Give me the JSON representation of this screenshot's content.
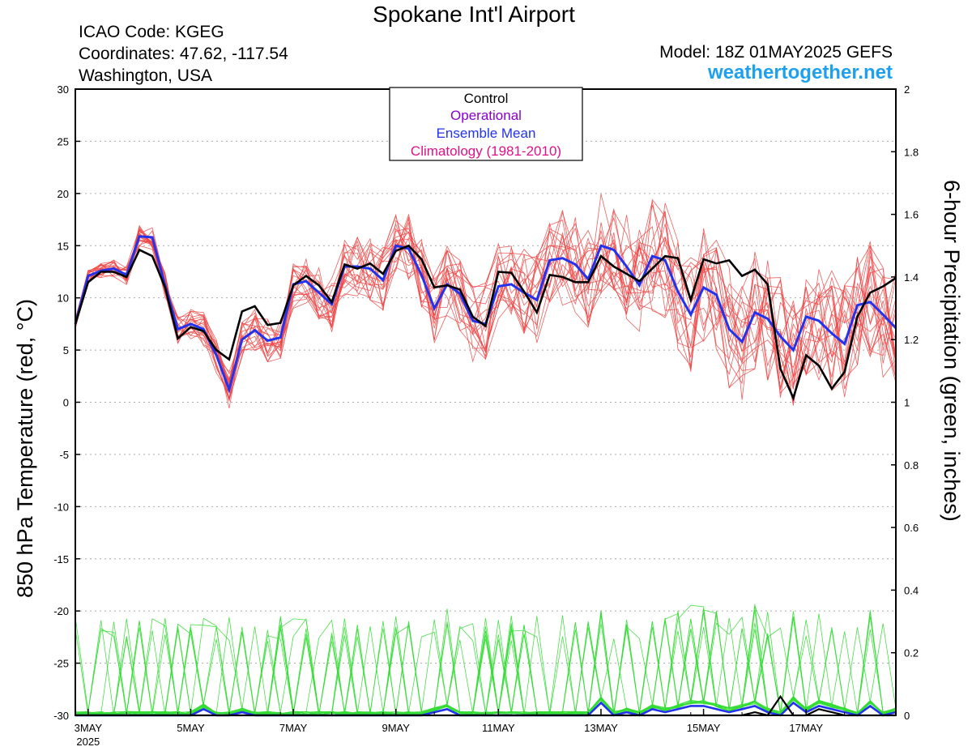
{
  "header": {
    "title": "Spokane Int'l Airport",
    "icao": "ICAO Code: KGEG",
    "coords": "Coordinates: 47.62, -117.54",
    "region": "Washington, USA",
    "model": "Model: 18Z 01MAY2025 GEFS",
    "site": "weathertogether.net"
  },
  "legend": {
    "control": "Control",
    "operational": "Operational",
    "mean": "Ensemble Mean",
    "climatology": "Climatology (1981-2010)"
  },
  "colors": {
    "members": "#ee4444",
    "control": "#000000",
    "operational": "#8800cc",
    "mean": "#2233ee",
    "climatology": "#dd1188",
    "precip": "#33dd33",
    "site": "#1ea0f0"
  },
  "chart_data": {
    "type": "line",
    "xlabel": "",
    "ylabel": "850 hPa Temperature (red, °C)",
    "y2label": "6-hour Precipitation (green, inches)",
    "x_range": [
      "01MAY2025 18Z",
      "17MAY2025 18Z"
    ],
    "x_step_hours": 6,
    "x_ticks": [
      "3MAY",
      "5MAY",
      "7MAY",
      "9MAY",
      "11MAY",
      "13MAY",
      "15MAY",
      "17MAY"
    ],
    "x_tick_sublabel": "2025",
    "ylim": [
      -30,
      30
    ],
    "yticks": [
      -30,
      -25,
      -20,
      -15,
      -10,
      -5,
      0,
      5,
      10,
      15,
      20,
      25,
      30
    ],
    "y2lim": [
      0,
      2
    ],
    "y2ticks": [
      0,
      0.2,
      0.4,
      0.6,
      0.8,
      1,
      1.2,
      1.4,
      1.6,
      1.8,
      2
    ],
    "grid": true,
    "legend_position": "top-center",
    "control_temp": [
      7.5,
      11.5,
      12.5,
      12.5,
      12.0,
      14.6,
      14.0,
      11.0,
      6.1,
      7.2,
      6.8,
      5.0,
      4.1,
      8.7,
      9.2,
      7.4,
      7.6,
      11.2,
      12.1,
      11.2,
      9.6,
      13.2,
      12.8,
      13.3,
      12.3,
      14.5,
      15.0,
      13.7,
      11.0,
      11.2,
      10.8,
      8.2,
      7.3,
      12.5,
      12.4,
      10.6,
      8.6,
      12.2,
      12.0,
      11.5,
      11.5,
      14.0,
      13.0,
      12.3,
      11.6,
      12.8,
      14.0,
      13.8,
      9.8,
      13.7,
      13.3,
      13.6,
      12.1,
      12.7,
      11.3,
      3.2,
      0.4,
      4.5,
      3.5,
      1.3,
      2.9,
      8.2,
      10.5,
      11.1,
      11.9
    ],
    "mean_temp": [
      7.5,
      12.1,
      12.6,
      12.8,
      12.2,
      15.9,
      15.8,
      11.2,
      7.0,
      7.5,
      7.0,
      4.5,
      1.2,
      6.0,
      6.9,
      5.9,
      6.2,
      11.3,
      11.6,
      10.5,
      9.4,
      13.0,
      13.0,
      12.8,
      11.7,
      15.0,
      14.7,
      12.2,
      9.0,
      11.3,
      10.4,
      7.8,
      7.5,
      11.1,
      11.3,
      10.5,
      9.8,
      13.6,
      13.8,
      13.2,
      11.8,
      15.0,
      14.6,
      13.0,
      11.2,
      14.0,
      13.6,
      10.6,
      8.4,
      11.0,
      10.3,
      7.0,
      5.8,
      8.6,
      8.0,
      6.3,
      5.0,
      8.2,
      7.8,
      6.6,
      5.6,
      9.3,
      9.6,
      8.4,
      7.1
    ],
    "mean_precip": [
      0,
      0,
      0,
      0,
      0,
      0,
      0,
      0,
      0,
      0,
      0.02,
      0,
      0,
      0.01,
      0,
      0,
      0,
      0,
      0,
      0,
      0,
      0,
      0,
      0,
      0,
      0,
      0,
      0,
      0.01,
      0.02,
      0,
      0,
      0,
      0,
      0,
      0,
      0,
      0,
      0,
      0,
      0,
      0.04,
      0,
      0.01,
      0,
      0.02,
      0.01,
      0.02,
      0.03,
      0.03,
      0.02,
      0.01,
      0.02,
      0.03,
      0.01,
      0,
      0.04,
      0.01,
      0.03,
      0.02,
      0.01,
      0,
      0.03,
      0,
      0.01
    ],
    "control_precip": [
      0,
      0,
      0,
      0,
      0,
      0,
      0,
      0,
      0,
      0,
      0,
      0,
      0,
      0,
      0,
      0,
      0,
      0,
      0,
      0,
      0,
      0,
      0,
      0,
      0,
      0,
      0,
      0,
      0,
      0,
      0,
      0,
      0,
      0,
      0,
      0,
      0,
      0,
      0,
      0,
      0,
      0,
      0,
      0,
      0,
      0,
      0,
      0,
      0,
      0,
      0,
      0,
      0,
      0.01,
      0,
      0.06,
      0,
      0,
      0.02,
      0.01,
      0,
      0,
      0,
      0,
      0
    ]
  }
}
